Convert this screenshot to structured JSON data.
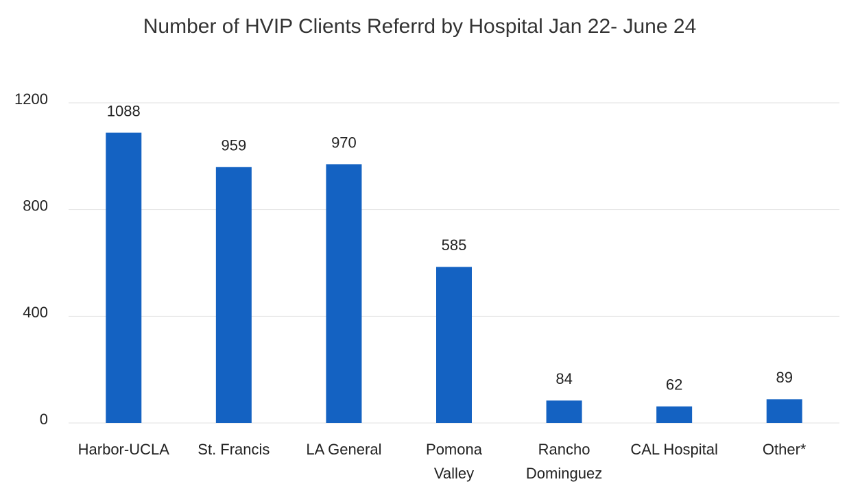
{
  "chart_data": {
    "type": "bar",
    "title": "Number of HVIP Clients Referrd by Hospital Jan 22- June 24",
    "categories": [
      [
        "Harbor-UCLA"
      ],
      [
        "St. Francis"
      ],
      [
        "LA General"
      ],
      [
        "Pomona",
        "Valley"
      ],
      [
        "Rancho",
        "Dominguez"
      ],
      [
        "CAL Hospital"
      ],
      [
        "Other*"
      ]
    ],
    "values": [
      1088,
      959,
      970,
      585,
      84,
      62,
      89
    ],
    "color": "#1462c2",
    "ylim": [
      0,
      1200
    ],
    "yticks": [
      0,
      400,
      800,
      1200
    ],
    "grid": true
  }
}
